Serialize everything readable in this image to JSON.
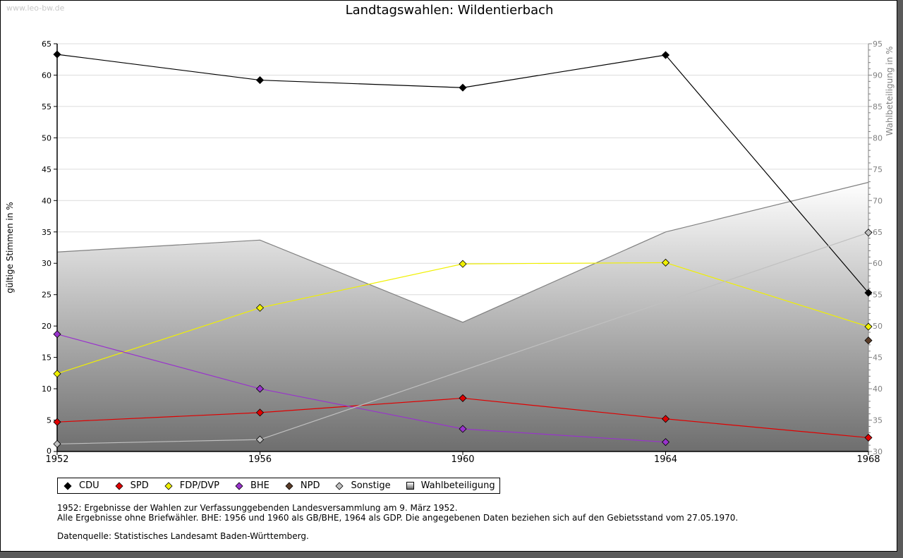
{
  "watermark": "www.leo-bw.de",
  "title": "Landtagswahlen: Wildentierbach",
  "chart_data": {
    "type": "line",
    "title": "Landtagswahlen: Wildentierbach",
    "xlabel": "",
    "ylabel": "gültige Stimmen in %",
    "y2label": "Wahlbeteiligung in %",
    "x": [
      1952,
      1956,
      1960,
      1964,
      1968
    ],
    "x_tick_labels": [
      "1952",
      "1956",
      "1960",
      "1964",
      "1968"
    ],
    "ylim": [
      0,
      65
    ],
    "y_ticks": [
      "0",
      "5",
      "10",
      "15",
      "20",
      "25",
      "30",
      "35",
      "40",
      "45",
      "50",
      "55",
      "60",
      "65"
    ],
    "y2lim": [
      30,
      95
    ],
    "y2_ticks": [
      "30",
      "35",
      "40",
      "45",
      "50",
      "55",
      "60",
      "65",
      "70",
      "75",
      "80",
      "85",
      "90",
      "95"
    ],
    "grid": true,
    "legend_position": "bottom-left",
    "series": [
      {
        "name": "CDU",
        "color": "#000000",
        "axis": "left",
        "values": [
          63.3,
          59.2,
          58.0,
          63.2,
          25.3
        ]
      },
      {
        "name": "SPD",
        "color": "#e00000",
        "axis": "left",
        "values": [
          4.7,
          6.2,
          8.5,
          5.2,
          2.2
        ]
      },
      {
        "name": "FDP/DVP",
        "color": "#f0f000",
        "axis": "left",
        "values": [
          12.4,
          22.9,
          29.9,
          30.1,
          19.9
        ]
      },
      {
        "name": "BHE",
        "color": "#9933cc",
        "axis": "left",
        "values": [
          18.7,
          10.0,
          3.6,
          1.5,
          null
        ]
      },
      {
        "name": "NPD",
        "color": "#5a3c28",
        "axis": "left",
        "values": [
          null,
          null,
          null,
          null,
          17.7
        ]
      },
      {
        "name": "Sonstige",
        "color": "#c0c0c0",
        "axis": "left",
        "values": [
          1.2,
          1.9,
          null,
          null,
          34.9
        ]
      },
      {
        "name": "Wahlbeteiligung",
        "color": "#808080",
        "axis": "right",
        "type": "area",
        "values": [
          61.8,
          63.7,
          50.6,
          65.0,
          72.9
        ]
      }
    ]
  },
  "notes": [
    "1952: Ergebnisse der Wahlen zur Verfassunggebenden Landesversammlung am 9. März 1952.",
    "Alle Ergebnisse ohne Briefwähler. BHE: 1956 und 1960 als GB/BHE, 1964 als GDP. Die angegebenen Daten beziehen sich auf den Gebietsstand vom 27.05.1970.",
    "Datenquelle: Statistisches Landesamt Baden-Württemberg."
  ]
}
